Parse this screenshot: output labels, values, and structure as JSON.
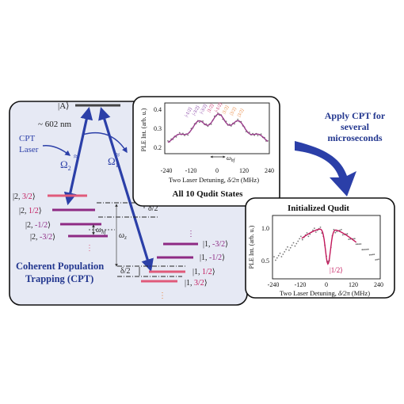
{
  "levels": {
    "excited": "|A⟩",
    "g2_p32_ket": "|2,",
    "g2_p32_m": "3/2",
    "g2_p12_ket": "|2,",
    "g2_p12_m": "1/2",
    "g2_m12_ket": "|2,",
    "g2_m12_m": "-1/2",
    "g2_m32_ket": "|2,",
    "g2_m32_m": "-3/2",
    "g1_m32_ket": "|1,",
    "g1_m32_m": "-3/2",
    "g1_m12_ket": "|1,",
    "g1_m12_m": "-1/2",
    "g1_p12_ket": "|1,",
    "g1_p12_m": "1/2",
    "g1_p32_ket": "|1,",
    "g1_p32_m": "3/2",
    "close": "⟩"
  },
  "labels": {
    "wavelength": "~ 602 nm",
    "laser_line1": "CPT",
    "laser_line2": "Laser",
    "omega2": "Ω",
    "omega2_sub": "2",
    "omega1": "Ω",
    "omega1_sub": "1",
    "delta_top": "δ/2",
    "delta_bottom": "δ/2",
    "omega_hf": "ω",
    "omega_hf_sub": "hf",
    "omega_z": "ω",
    "omega_z_sub": "z",
    "dots": "⋮",
    "title_line1": "Coherent Population",
    "title_line2": "Trapping (CPT)"
  },
  "arrow_caption": {
    "line1": "Apply CPT for",
    "line2": "several",
    "line3": "microseconds"
  },
  "top_plot": {
    "caption": "All 10 Qudit States",
    "xlabel_text": "Two Laser Detuning, ",
    "xlabel_sym": "δ/2π",
    "xlabel_unit": " (MHz)",
    "ylabel": "PLE Int. (arb. u.)",
    "omega_hf": "ω",
    "omega_hf_sub": "hf",
    "x_ticks": [
      "-240",
      "-120",
      "0",
      "120",
      "240"
    ],
    "y_ticks": [
      "0.2",
      "0.3",
      "0.4"
    ],
    "state_labels": [
      "|-1/2⟩",
      "|-3/2⟩",
      "|-3/2⟩",
      "|1/2⟩",
      "|-1/2⟩",
      "|1/2⟩",
      "|3/2⟩",
      "|3/2⟩"
    ],
    "state_colors": [
      "#7a2f9a",
      "#7a2f9a",
      "#7a2f9a",
      "#c2185b",
      "#c2185b",
      "#e8833a",
      "#e8833a",
      "#e8833a"
    ]
  },
  "bottom_plot": {
    "caption": "Initialized Qudit",
    "xlabel_text": "Two Laser Detuning, ",
    "xlabel_sym": "δ/2π",
    "xlabel_unit": " (MHz)",
    "ylabel": "PLE Int. (arb. u.)",
    "x_ticks": [
      "-240",
      "-120",
      "0",
      "120",
      "240"
    ],
    "y_ticks": [
      "0.5",
      "1.0"
    ],
    "dip_label": "|1/2⟩"
  },
  "colors": {
    "panel_fill": "#e6e9f4",
    "arrow_blue": "#2b3fa8",
    "level_purple": "#8e2a84",
    "level_pink": "#e05a7a",
    "level_orange": "#e8833a",
    "title_blue": "#23378f"
  }
}
